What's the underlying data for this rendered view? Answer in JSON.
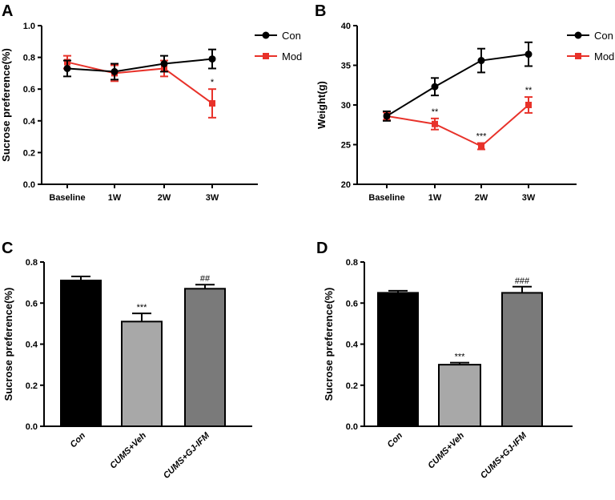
{
  "chart_data": [
    {
      "panel": "A",
      "type": "line",
      "ylabel": "Sucrose preference(%)",
      "xlabel": "",
      "categories": [
        "Baseline",
        "1W",
        "2W",
        "3W"
      ],
      "ylim": [
        0.0,
        1.0
      ],
      "yticks": [
        "0.0",
        "0.2",
        "0.4",
        "0.6",
        "0.8",
        "1.0"
      ],
      "series": [
        {
          "name": "Con",
          "color": "#000000",
          "values": [
            0.73,
            0.71,
            0.76,
            0.79
          ],
          "errors": [
            0.05,
            0.05,
            0.05,
            0.06
          ],
          "stars": [
            "",
            "",
            "",
            ""
          ]
        },
        {
          "name": "Mod",
          "color": "#e8322a",
          "values": [
            0.77,
            0.7,
            0.73,
            0.51
          ],
          "errors": [
            0.04,
            0.05,
            0.05,
            0.09
          ],
          "stars": [
            "",
            "",
            "",
            "*"
          ]
        }
      ]
    },
    {
      "panel": "B",
      "type": "line",
      "ylabel": "Weight(g)",
      "xlabel": "",
      "categories": [
        "Baseline",
        "1W",
        "2W",
        "3W"
      ],
      "ylim": [
        20,
        40
      ],
      "yticks": [
        "20",
        "25",
        "30",
        "35",
        "40"
      ],
      "series": [
        {
          "name": "Con",
          "color": "#000000",
          "values": [
            28.6,
            32.3,
            35.6,
            36.4
          ],
          "errors": [
            0.6,
            1.1,
            1.5,
            1.5
          ],
          "stars": [
            "",
            "",
            "",
            ""
          ]
        },
        {
          "name": "Mod",
          "color": "#e8322a",
          "values": [
            28.6,
            27.6,
            24.8,
            30.0
          ],
          "errors": [
            0.5,
            0.7,
            0.4,
            1.0
          ],
          "stars": [
            "",
            "**",
            "***",
            "**"
          ]
        }
      ]
    },
    {
      "panel": "C",
      "type": "bar",
      "ylabel": "Sucrose preference(%)",
      "xlabel": "",
      "categories": [
        "Con",
        "CUMS+Veh",
        "CUMS+GJ-IFM"
      ],
      "ylim": [
        0.0,
        0.8
      ],
      "yticks": [
        "0.0",
        "0.2",
        "0.4",
        "0.6",
        "0.8"
      ],
      "values": [
        0.71,
        0.51,
        0.67
      ],
      "errors": [
        0.02,
        0.04,
        0.02
      ],
      "colors": [
        "#000000",
        "#a8a8a8",
        "#7a7a7a"
      ],
      "annotations": [
        "",
        "***",
        "##"
      ]
    },
    {
      "panel": "D",
      "type": "bar",
      "ylabel": "Sucrose preference(%)",
      "xlabel": "",
      "categories": [
        "Con",
        "CUMS+Veh",
        "CUMS+GJ-IFM"
      ],
      "ylim": [
        0.0,
        0.8
      ],
      "yticks": [
        "0.0",
        "0.2",
        "0.4",
        "0.6",
        "0.8"
      ],
      "values": [
        0.65,
        0.3,
        0.65
      ],
      "errors": [
        0.01,
        0.01,
        0.03
      ],
      "colors": [
        "#000000",
        "#a8a8a8",
        "#7a7a7a"
      ],
      "annotations": [
        "",
        "***",
        "###"
      ]
    }
  ]
}
